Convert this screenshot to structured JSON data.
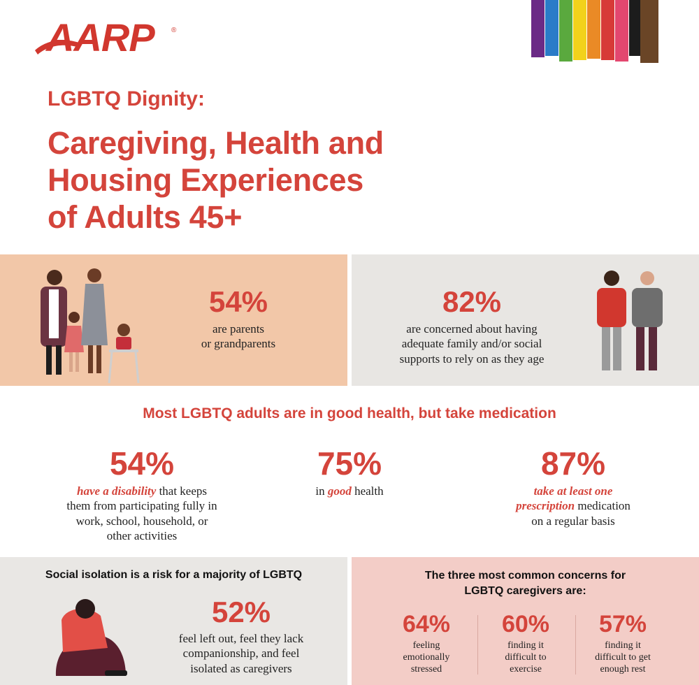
{
  "brand": {
    "logo_text": "AARP",
    "reg_mark": "®",
    "brand_color": "#d1372e"
  },
  "header": {
    "kicker": "LGBTQ Dignity:",
    "headline_lines": [
      "Caregiving, Health and",
      "Housing Experiences",
      "of Adults 45+"
    ]
  },
  "pride_stripes": [
    "#6b2a86",
    "#2a7bc8",
    "#5aa93e",
    "#f2d21b",
    "#ea8a26",
    "#d73a37",
    "#e3476f",
    "#1c1c1c",
    "#6a4526"
  ],
  "top_stats": {
    "parents": {
      "pct": "54%",
      "lines": [
        "are parents",
        "or grandparents"
      ]
    },
    "supports": {
      "pct": "82%",
      "lines": [
        "are concerned about having",
        "adequate family and/or social",
        "supports to rely on as they age"
      ]
    }
  },
  "health": {
    "heading": "Most LGBTQ adults are in good health, but take medication",
    "disability": {
      "pct": "54%",
      "emph": "have a disability",
      "rest1": " that keeps",
      "lines": [
        "them from participating fully in",
        "work, school, household, or",
        "other activities"
      ]
    },
    "good_health": {
      "pct": "75%",
      "pre": "in ",
      "emph": "good",
      "post": " health"
    },
    "prescription": {
      "pct": "87%",
      "emph1": "take at least one",
      "emph2": "prescription",
      "rest2": " medication",
      "line3": "on a regular basis"
    }
  },
  "isolation": {
    "title": "Social isolation is a risk for a majority of LGBTQ",
    "pct": "52%",
    "lines": [
      "feel left out, feel they lack",
      "companionship, and feel",
      "isolated as caregivers"
    ]
  },
  "concerns": {
    "title_lines": [
      "The three most common concerns for",
      "LGBTQ caregivers are:"
    ],
    "items": [
      {
        "pct": "64%",
        "lines": [
          "feeling",
          "emotionally",
          "stressed"
        ]
      },
      {
        "pct": "60%",
        "lines": [
          "finding it",
          "difficult to",
          "exercise"
        ]
      },
      {
        "pct": "57%",
        "lines": [
          "finding it",
          "difficult to get",
          "enough rest"
        ]
      }
    ]
  }
}
